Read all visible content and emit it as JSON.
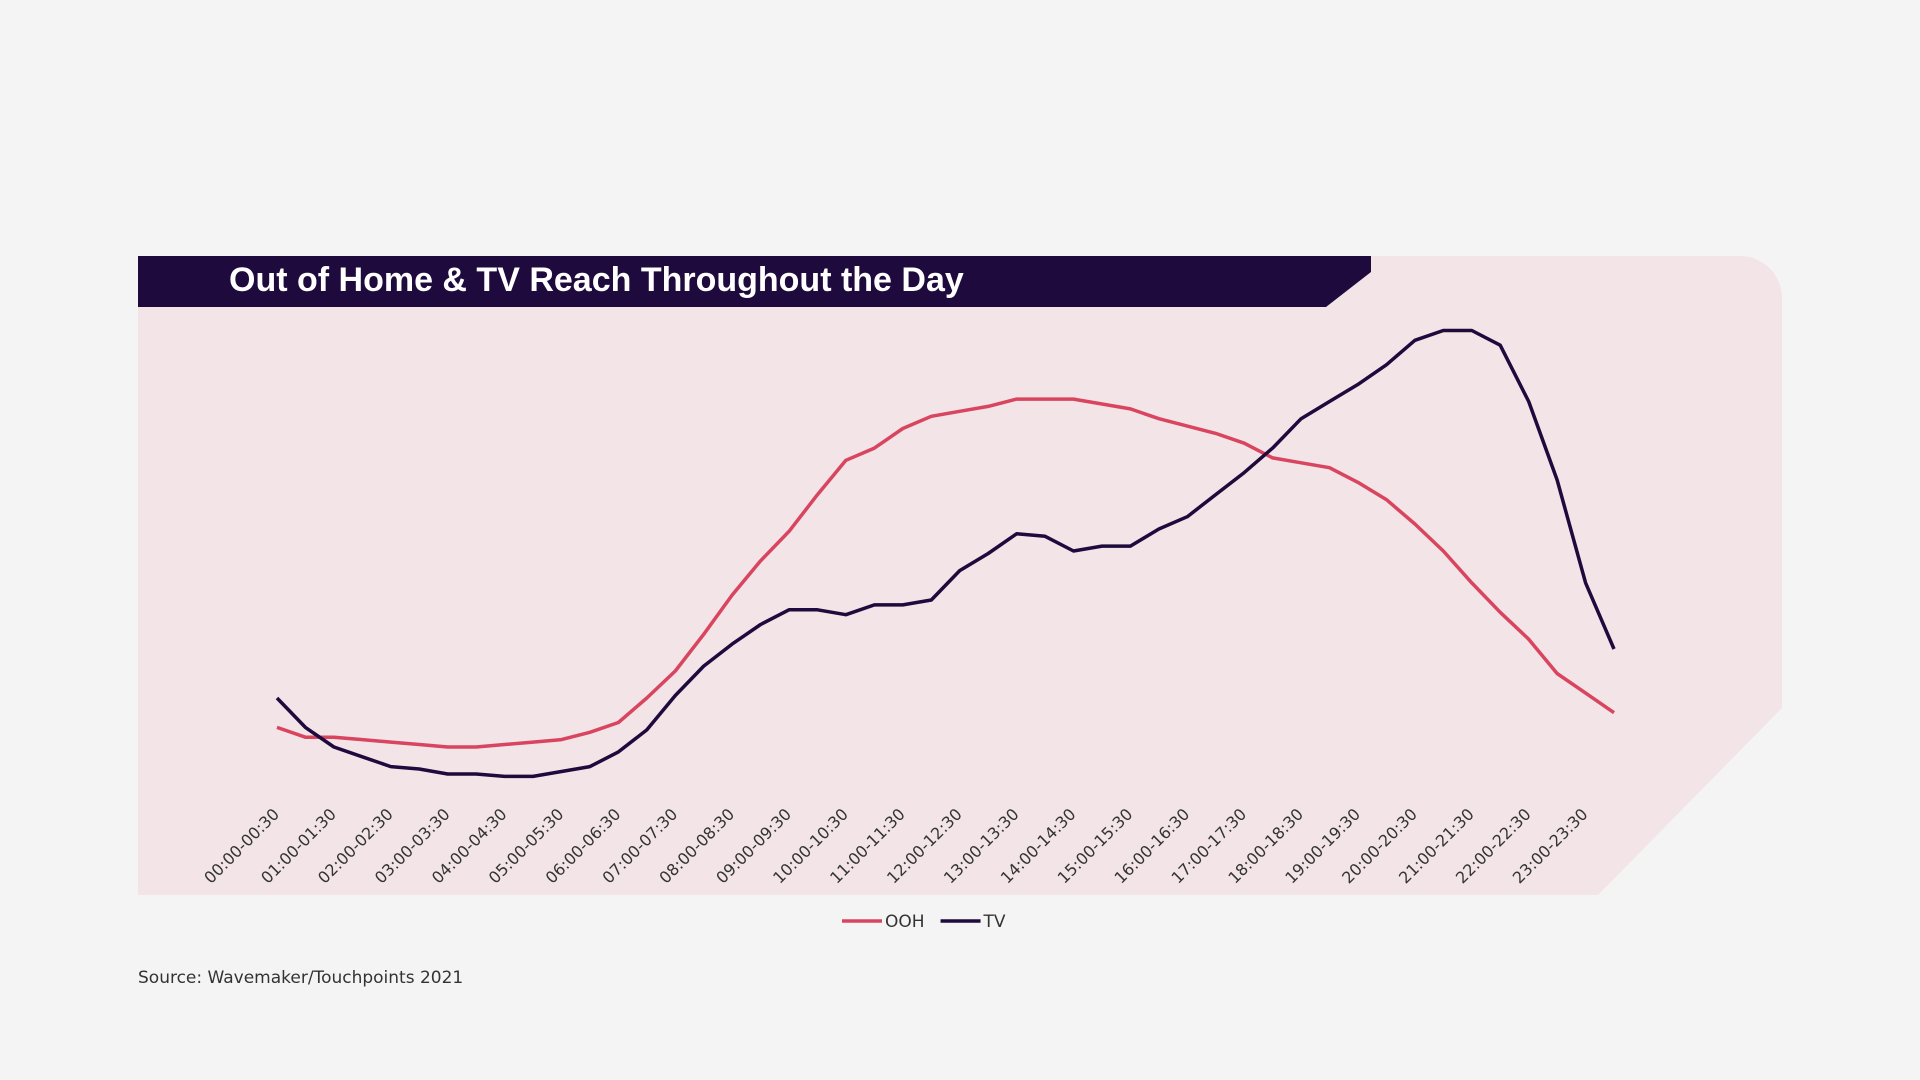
{
  "chart_data": {
    "type": "line",
    "title": "Out of Home & TV Reach Throughout the Day",
    "source": "Source: Wavemaker/Touchpoints 2021",
    "categories": [
      "00:00-00:30",
      null,
      "01:00-01:30",
      null,
      "02:00-02:30",
      null,
      "03:00-03:30",
      null,
      "04:00-04:30",
      null,
      "05:00-05:30",
      null,
      "06:00-06:30",
      null,
      "07:00-07:30",
      null,
      "08:00-08:30",
      null,
      "09:00-09:30",
      null,
      "10:00-10:30",
      null,
      "11:00-11:30",
      null,
      "12:00-12:30",
      null,
      "13:00-13:30",
      null,
      "14:00-14:30",
      null,
      "15:00-15:30",
      null,
      "16:00-16:30",
      null,
      "17:00-17:30",
      null,
      "18:00-18:30",
      null,
      "19:00-19:30",
      null,
      "20:00-20:30",
      null,
      "21:00-21:30",
      null,
      "22:00-22:30",
      null,
      "23:00-23:30",
      null
    ],
    "series": [
      {
        "name": "OOH",
        "color": "#d9455f",
        "values": [
          14,
          12,
          12,
          11.5,
          11,
          10.5,
          10,
          10,
          10.5,
          11,
          11.5,
          13,
          15,
          20,
          25.5,
          33,
          41,
          48,
          54,
          61.5,
          68.5,
          71,
          75,
          77.5,
          78.5,
          79.5,
          81,
          81,
          81,
          80,
          79,
          77,
          75.5,
          74,
          72,
          69,
          68,
          67,
          64,
          60.5,
          55.5,
          50,
          43.5,
          37.5,
          32,
          25,
          21,
          17
        ]
      },
      {
        "name": "TV",
        "color": "#1e0a3c",
        "values": [
          20,
          14,
          10,
          8,
          6,
          5.5,
          4.5,
          4.5,
          4,
          4,
          5,
          6,
          9,
          13.5,
          20.5,
          26.5,
          31,
          35,
          38,
          38,
          37,
          39,
          39,
          40,
          46,
          49.5,
          53.5,
          53,
          50,
          51,
          51,
          54.5,
          57,
          61.5,
          66,
          71,
          77,
          80.5,
          84,
          88,
          93,
          95,
          95,
          92,
          80.5,
          64.5,
          43.5,
          30
        ]
      }
    ],
    "ylim": [
      0,
      100
    ],
    "legend": "bottom"
  }
}
